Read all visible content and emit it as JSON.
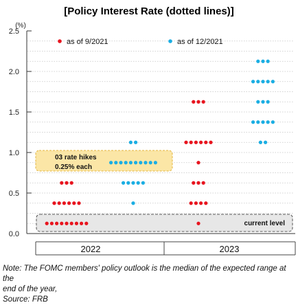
{
  "chart_data": {
    "type": "scatter",
    "title": "[Policy Interest Rate (dotted lines)]",
    "ylabel": "(%)",
    "ylim": [
      0,
      2.5
    ],
    "yticks": [
      "0.0",
      "0.5",
      "1.0",
      "1.5",
      "2.0",
      "2.5"
    ],
    "xlabel": "",
    "categories": [
      "2022",
      "2023"
    ],
    "grid": true,
    "legend_position": "top",
    "series": [
      {
        "name": "as of 9/2021",
        "color": "#e8141e",
        "points": [
          {
            "x": "2022",
            "y": 0.125,
            "count": 9
          },
          {
            "x": "2022",
            "y": 0.375,
            "count": 6
          },
          {
            "x": "2022",
            "y": 0.625,
            "count": 3
          },
          {
            "x": "2023",
            "y": 0.125,
            "count": 1
          },
          {
            "x": "2023",
            "y": 0.375,
            "count": 4
          },
          {
            "x": "2023",
            "y": 0.625,
            "count": 3
          },
          {
            "x": "2023",
            "y": 0.875,
            "count": 1
          },
          {
            "x": "2023",
            "y": 1.125,
            "count": 6
          },
          {
            "x": "2023",
            "y": 1.625,
            "count": 3
          }
        ]
      },
      {
        "name": "as of 12/2021",
        "color": "#1aaee3",
        "points": [
          {
            "x": "2022",
            "y": 0.375,
            "count": 1
          },
          {
            "x": "2022",
            "y": 0.625,
            "count": 5
          },
          {
            "x": "2022",
            "y": 0.875,
            "count": 10
          },
          {
            "x": "2022",
            "y": 1.125,
            "count": 2
          },
          {
            "x": "2023",
            "y": 1.125,
            "count": 2
          },
          {
            "x": "2023",
            "y": 1.375,
            "count": 5
          },
          {
            "x": "2023",
            "y": 1.625,
            "count": 3
          },
          {
            "x": "2023",
            "y": 1.875,
            "count": 5
          },
          {
            "x": "2023",
            "y": 2.125,
            "count": 3
          }
        ]
      }
    ],
    "annotations": {
      "rate_hikes_line1": "03 rate hikes",
      "rate_hikes_line2": "0.25% each",
      "rate_hikes_fill": "#fbe6a6",
      "rate_hikes_border": "#e3b43c",
      "current_level": "current level",
      "current_level_fill": "#e7e7e7"
    }
  },
  "note": {
    "line1": "Note: The FOMC members' policy outlook is the median of the expected range at the",
    "line2": "end of the year,",
    "source": "Source: FRB"
  }
}
